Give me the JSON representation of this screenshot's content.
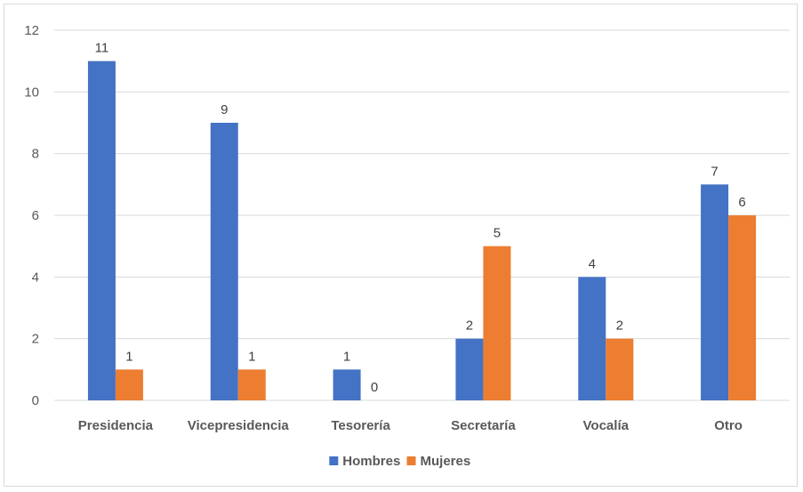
{
  "chart_data": {
    "type": "bar",
    "categories": [
      "Presidencia",
      "Vicepresidencia",
      "Tesorería",
      "Secretaría",
      "Vocalía",
      "Otro"
    ],
    "series": [
      {
        "name": "Hombres",
        "color": "#4472c4",
        "values": [
          11,
          9,
          1,
          2,
          4,
          7
        ]
      },
      {
        "name": "Mujeres",
        "color": "#ed7d31",
        "values": [
          1,
          1,
          0,
          5,
          2,
          6
        ]
      }
    ],
    "title": "",
    "xlabel": "",
    "ylabel": "",
    "ylim": [
      0,
      12
    ],
    "yticks": [
      0,
      2,
      4,
      6,
      8,
      10,
      12
    ],
    "grid": true,
    "legend_position": "bottom",
    "data_labels": true
  }
}
